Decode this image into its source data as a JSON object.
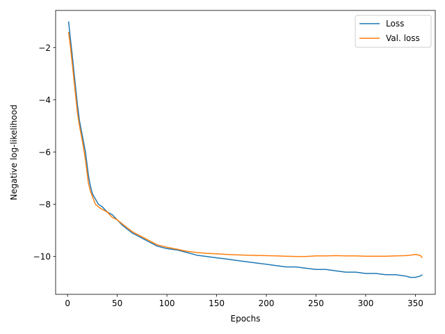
{
  "chart_data": {
    "type": "line",
    "xlabel": "Epochs",
    "ylabel": "Negative log-likelihood",
    "xlim": [
      -12,
      370
    ],
    "ylim": [
      -11.45,
      -0.58
    ],
    "xticks": [
      0,
      50,
      100,
      150,
      200,
      250,
      300,
      350
    ],
    "yticks": [
      -10,
      -8,
      -6,
      -4,
      -2
    ],
    "ytick_labels": [
      "−10",
      "−8",
      "−6",
      "−4",
      "−2"
    ],
    "grid": false,
    "legend_position": "top-right",
    "series": [
      {
        "name": "Loss",
        "color": "#1f77b4",
        "x": [
          1,
          3,
          5,
          8,
          10,
          12,
          15,
          18,
          21,
          23,
          25,
          28,
          31,
          35,
          40,
          45,
          50,
          55,
          60,
          65,
          70,
          75,
          80,
          90,
          100,
          110,
          120,
          130,
          140,
          150,
          160,
          170,
          180,
          190,
          200,
          210,
          220,
          230,
          240,
          250,
          260,
          270,
          280,
          290,
          300,
          310,
          320,
          330,
          340,
          345,
          350,
          355,
          357
        ],
        "values": [
          -1.0,
          -1.7,
          -2.4,
          -3.5,
          -4.2,
          -4.8,
          -5.4,
          -6.0,
          -6.9,
          -7.3,
          -7.6,
          -7.8,
          -8.0,
          -8.1,
          -8.3,
          -8.4,
          -8.6,
          -8.8,
          -8.95,
          -9.1,
          -9.2,
          -9.3,
          -9.4,
          -9.6,
          -9.7,
          -9.75,
          -9.85,
          -9.95,
          -10.0,
          -10.05,
          -10.1,
          -10.15,
          -10.2,
          -10.25,
          -10.3,
          -10.35,
          -10.4,
          -10.4,
          -10.45,
          -10.5,
          -10.5,
          -10.55,
          -10.6,
          -10.6,
          -10.65,
          -10.65,
          -10.7,
          -10.7,
          -10.75,
          -10.8,
          -10.8,
          -10.75,
          -10.7
        ]
      },
      {
        "name": "Val. loss",
        "color": "#ff7f0e",
        "x": [
          1,
          3,
          5,
          8,
          10,
          12,
          15,
          18,
          21,
          23,
          25,
          28,
          31,
          35,
          40,
          45,
          50,
          55,
          60,
          65,
          70,
          75,
          80,
          90,
          100,
          110,
          120,
          130,
          140,
          150,
          160,
          170,
          180,
          190,
          200,
          210,
          220,
          230,
          240,
          250,
          260,
          270,
          280,
          290,
          300,
          310,
          320,
          330,
          340,
          345,
          350,
          355,
          357
        ],
        "values": [
          -1.4,
          -2.0,
          -2.7,
          -3.8,
          -4.5,
          -5.0,
          -5.6,
          -6.3,
          -7.2,
          -7.5,
          -7.7,
          -8.0,
          -8.1,
          -8.2,
          -8.3,
          -8.5,
          -8.6,
          -8.75,
          -8.9,
          -9.05,
          -9.15,
          -9.25,
          -9.35,
          -9.55,
          -9.65,
          -9.72,
          -9.8,
          -9.85,
          -9.88,
          -9.9,
          -9.92,
          -9.94,
          -9.95,
          -9.96,
          -9.97,
          -9.98,
          -9.99,
          -10.0,
          -10.0,
          -9.98,
          -9.98,
          -9.97,
          -9.98,
          -9.98,
          -9.99,
          -9.99,
          -9.99,
          -9.98,
          -9.97,
          -9.95,
          -9.92,
          -9.96,
          -10.05
        ]
      }
    ]
  }
}
